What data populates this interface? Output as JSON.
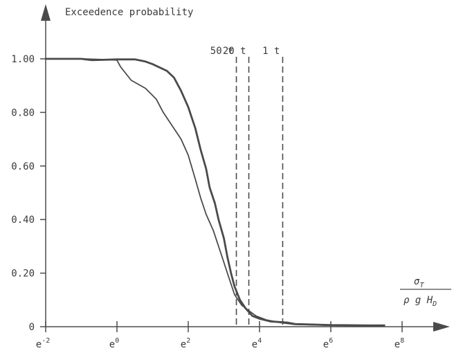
{
  "chart_data": {
    "type": "line",
    "ylabel": "Exceedence probability",
    "xlabel": {
      "numerator": "σ",
      "numerator_sub": "T",
      "denominator": "ρ g H",
      "denominator_sub": "D"
    },
    "x_scale": "log (base e)",
    "x_ticks": [
      {
        "value": -2,
        "label": "e",
        "exp": "-2"
      },
      {
        "value": 0,
        "label": "e",
        "exp": "0"
      },
      {
        "value": 2,
        "label": "e",
        "exp": "2"
      },
      {
        "value": 4,
        "label": "e",
        "exp": "4"
      },
      {
        "value": 6,
        "label": "e",
        "exp": "6"
      },
      {
        "value": 8,
        "label": "e",
        "exp": "8"
      }
    ],
    "y_ticks": [
      {
        "value": 0,
        "label": "0"
      },
      {
        "value": 0.2,
        "label": "0.20"
      },
      {
        "value": 0.4,
        "label": "0.40"
      },
      {
        "value": 0.6,
        "label": "0.60"
      },
      {
        "value": 0.8,
        "label": "0.80"
      },
      {
        "value": 1.0,
        "label": "1.00"
      }
    ],
    "xlim": [
      -2,
      8
    ],
    "ylim": [
      0,
      1
    ],
    "reference_lines": [
      {
        "x": 3.35,
        "label": "50 t"
      },
      {
        "x": 3.7,
        "label": "20 t"
      },
      {
        "x": 4.65,
        "label": "1 t"
      }
    ],
    "series": [
      {
        "style": "thick",
        "points": [
          [
            -2,
            1.0
          ],
          [
            -1.0,
            1.0
          ],
          [
            -0.7,
            0.995
          ],
          [
            0,
            0.998
          ],
          [
            0.5,
            0.998
          ],
          [
            0.8,
            0.99
          ],
          [
            1,
            0.98
          ],
          [
            1.4,
            0.955
          ],
          [
            1.6,
            0.93
          ],
          [
            1.8,
            0.88
          ],
          [
            2.0,
            0.82
          ],
          [
            2.1,
            0.78
          ],
          [
            2.2,
            0.74
          ],
          [
            2.35,
            0.66
          ],
          [
            2.5,
            0.59
          ],
          [
            2.6,
            0.52
          ],
          [
            2.75,
            0.46
          ],
          [
            2.85,
            0.4
          ],
          [
            3.0,
            0.33
          ],
          [
            3.1,
            0.26
          ],
          [
            3.2,
            0.2
          ],
          [
            3.3,
            0.15
          ],
          [
            3.45,
            0.1
          ],
          [
            3.6,
            0.07
          ],
          [
            3.8,
            0.04
          ],
          [
            4.0,
            0.03
          ],
          [
            4.3,
            0.02
          ],
          [
            4.8,
            0.015
          ],
          [
            5.0,
            0.01
          ],
          [
            5.5,
            0.008
          ],
          [
            6.0,
            0.006
          ],
          [
            7.0,
            0.005
          ],
          [
            7.5,
            0.005
          ]
        ]
      },
      {
        "style": "thin",
        "points": [
          [
            -2,
            1.0
          ],
          [
            -1.0,
            1.0
          ],
          [
            -0.5,
            0.998
          ],
          [
            0,
            0.995
          ],
          [
            0.1,
            0.97
          ],
          [
            0.4,
            0.92
          ],
          [
            0.8,
            0.89
          ],
          [
            1.1,
            0.85
          ],
          [
            1.3,
            0.8
          ],
          [
            1.6,
            0.74
          ],
          [
            1.8,
            0.7
          ],
          [
            2.0,
            0.64
          ],
          [
            2.2,
            0.55
          ],
          [
            2.35,
            0.48
          ],
          [
            2.5,
            0.42
          ],
          [
            2.7,
            0.36
          ],
          [
            2.9,
            0.28
          ],
          [
            3.1,
            0.2
          ],
          [
            3.3,
            0.12
          ],
          [
            3.5,
            0.08
          ],
          [
            3.7,
            0.06
          ],
          [
            3.9,
            0.04
          ],
          [
            4.2,
            0.025
          ],
          [
            4.6,
            0.015
          ],
          [
            5.0,
            0.008
          ],
          [
            6.0,
            0.005
          ],
          [
            7.0,
            0.004
          ]
        ]
      }
    ]
  }
}
